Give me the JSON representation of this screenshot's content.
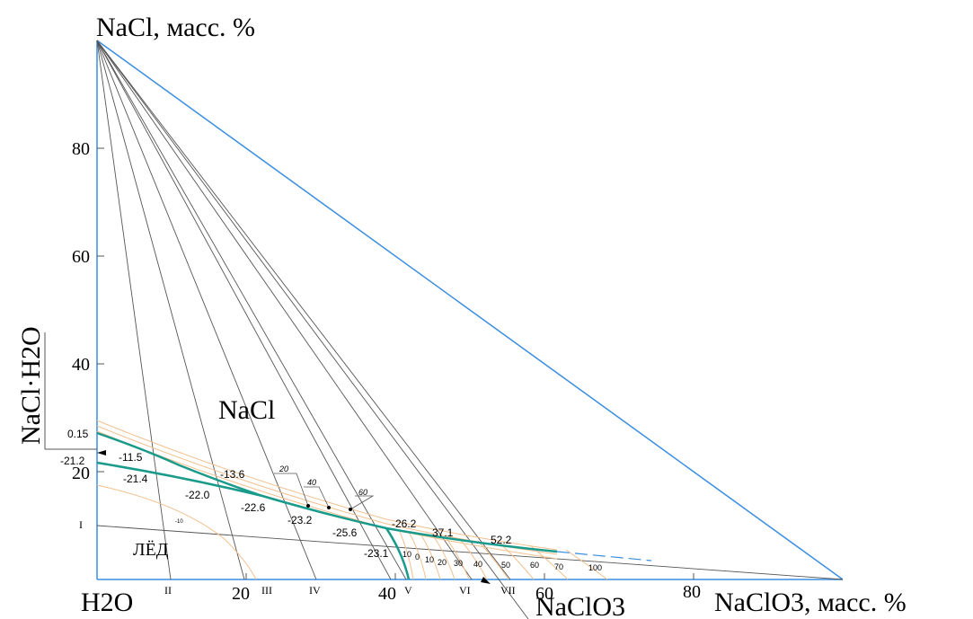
{
  "labels": {
    "top_axis": "NaCl, масс. %",
    "bottom_left": "H2O",
    "right_axis": "NaClO3, масс. %",
    "bottom_mid": "NaClO3",
    "left_side": "NaCl·H2O",
    "field_nacl": "NaCl",
    "field_ice": "ЛЁД",
    "point_015": "0.15"
  },
  "y_ticks": [
    "20",
    "40",
    "60",
    "80"
  ],
  "x_ticks": [
    "20",
    "40",
    "60",
    "80"
  ],
  "roman": {
    "I": "I",
    "II": "II",
    "III": "III",
    "IV": "IV",
    "V": "V",
    "VI": "VI",
    "VII": "VII"
  },
  "temps": {
    "t1": "-21.2",
    "t2": "-11.5",
    "t3": "-21.4",
    "t4": "-13.6",
    "t5": "-22.0",
    "t6": "-22.6",
    "t7": "-23.2",
    "t8": "-25.6",
    "t9": "-26.2",
    "t10": "37.1",
    "t11": "52.2",
    "t12": "-23.1"
  },
  "isotherms": {
    "i1": "10",
    "i2": "0",
    "i3": "10",
    "i4": "20",
    "i5": "30",
    "i6": "40",
    "i7": "50",
    "i8": "60",
    "i9": "70",
    "i10": "100",
    "upper20": "20",
    "upper40": "40",
    "upper60": "60",
    "ice_small": "-10"
  },
  "colors": {
    "triangle": "#3a8ee0",
    "eutectic": "#1a9a8a",
    "isotherm": "#f2c08e",
    "line": "#555555"
  }
}
